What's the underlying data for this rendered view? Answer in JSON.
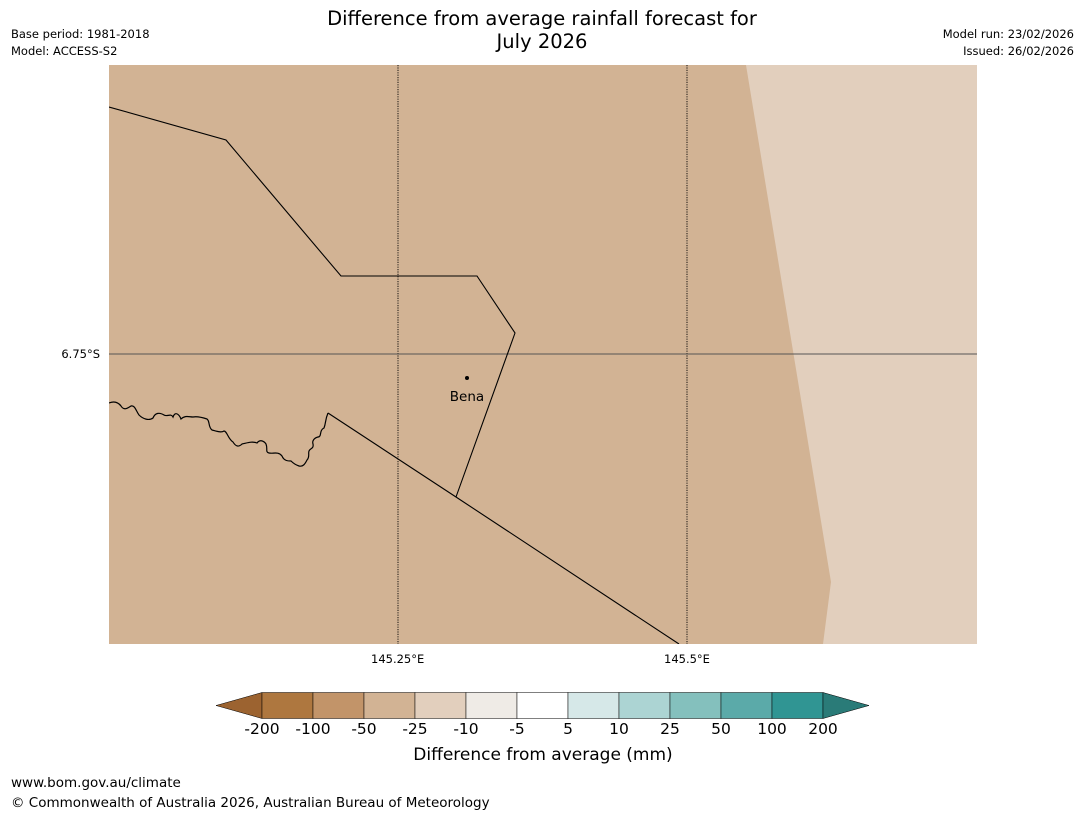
{
  "header": {
    "title_line1": "Difference from average rainfall forecast for",
    "title_line2": "July 2026",
    "base_period": "Base period: 1981-2018",
    "model": "Model: ACCESS-S2",
    "model_run": "Model run: 23/02/2026",
    "issued": "Issued: 26/02/2026"
  },
  "map": {
    "latitude_label": "6.75°S",
    "longitude_labels": [
      "145.25°E",
      "145.5°E"
    ],
    "place": {
      "name": "Bena"
    },
    "fill_colors": {
      "main": "#d2b394",
      "east": "#e2cfbd"
    }
  },
  "legend": {
    "label": "Difference from average (mm)",
    "ticks": [
      "-200",
      "-100",
      "-50",
      "-25",
      "-10",
      "-5",
      "5",
      "10",
      "25",
      "50",
      "100",
      "200"
    ],
    "colors": [
      "#9c6330",
      "#ae773f",
      "#c29469",
      "#d2b394",
      "#e2cfbd",
      "#efebe6",
      "#ffffff",
      "#d6e8e8",
      "#acd4d3",
      "#84c0bd",
      "#5baaa9",
      "#309593",
      "#2a7b78"
    ]
  },
  "footer": {
    "url": "www.bom.gov.au/climate",
    "copyright": "© Commonwealth of Australia 2026, Australian Bureau of Meteorology"
  }
}
